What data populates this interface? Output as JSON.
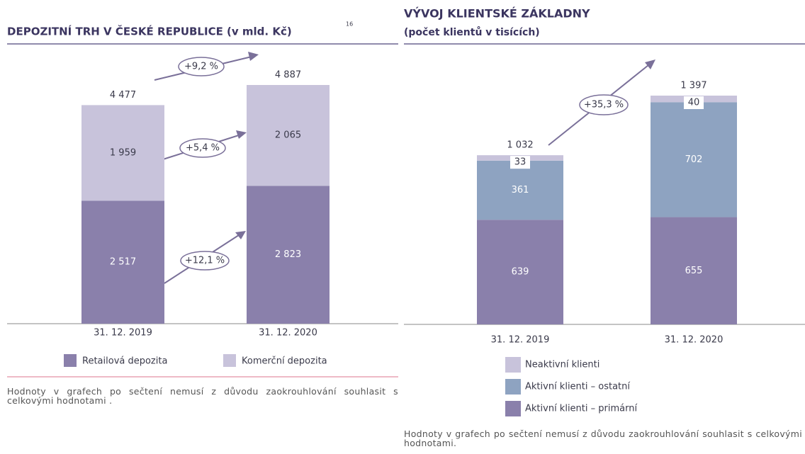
{
  "chart_data": [
    {
      "type": "stacked_bar",
      "title": "DEPOZITNÍ TRH V ČESKÉ REPUBLICE (v mld. Kč)",
      "title_note": "16",
      "categories": [
        "31. 12. 2019",
        "31. 12. 2020"
      ],
      "series": [
        {
          "name": "Retailová depozita",
          "color": "#8a80ab",
          "values": [
            2517,
            2823
          ],
          "value_labels": [
            "2 517",
            "2 823"
          ]
        },
        {
          "name": "Komerční depozita",
          "color": "#c8c3db",
          "values": [
            1959,
            2065
          ],
          "value_labels": [
            "1 959",
            "2 065"
          ]
        }
      ],
      "totals": [
        4477,
        4887
      ],
      "totals_labels": [
        "4 477",
        "4 887"
      ],
      "annotations": [
        "+9,2 %",
        "+5,4 %",
        "+12,1 %"
      ],
      "legend": "bottom",
      "footnote": "Hodnoty v grafech po sečtení nemusí z důvodu zaokrouhlování souhlasit s celkovými hodnotami ."
    },
    {
      "type": "stacked_bar",
      "title": "VÝVOJ KLIENTSKÉ ZÁKLADNY",
      "subtitle": "(počet klientů v tisících)",
      "categories": [
        "31. 12. 2019",
        "31. 12. 2020"
      ],
      "series": [
        {
          "name": "Aktivní klienti – primární",
          "color": "#8a80ab",
          "values": [
            639,
            655
          ]
        },
        {
          "name": "Aktivní klienti – ostatní",
          "color": "#8ea3c1",
          "values": [
            361,
            702
          ]
        },
        {
          "name": "Neaktivní klienti",
          "color": "#c8c3db",
          "values": [
            33,
            40
          ]
        }
      ],
      "totals": [
        1032,
        1397
      ],
      "totals_labels": [
        "1 032",
        "1 397"
      ],
      "annotations": [
        "+35,3 %"
      ],
      "legend": "bottom-left",
      "footnote": "Hodnoty v grafech po sečtení nemusí z důvodu zaokrouhlování souhlasit s celkovými hodnotami."
    }
  ]
}
